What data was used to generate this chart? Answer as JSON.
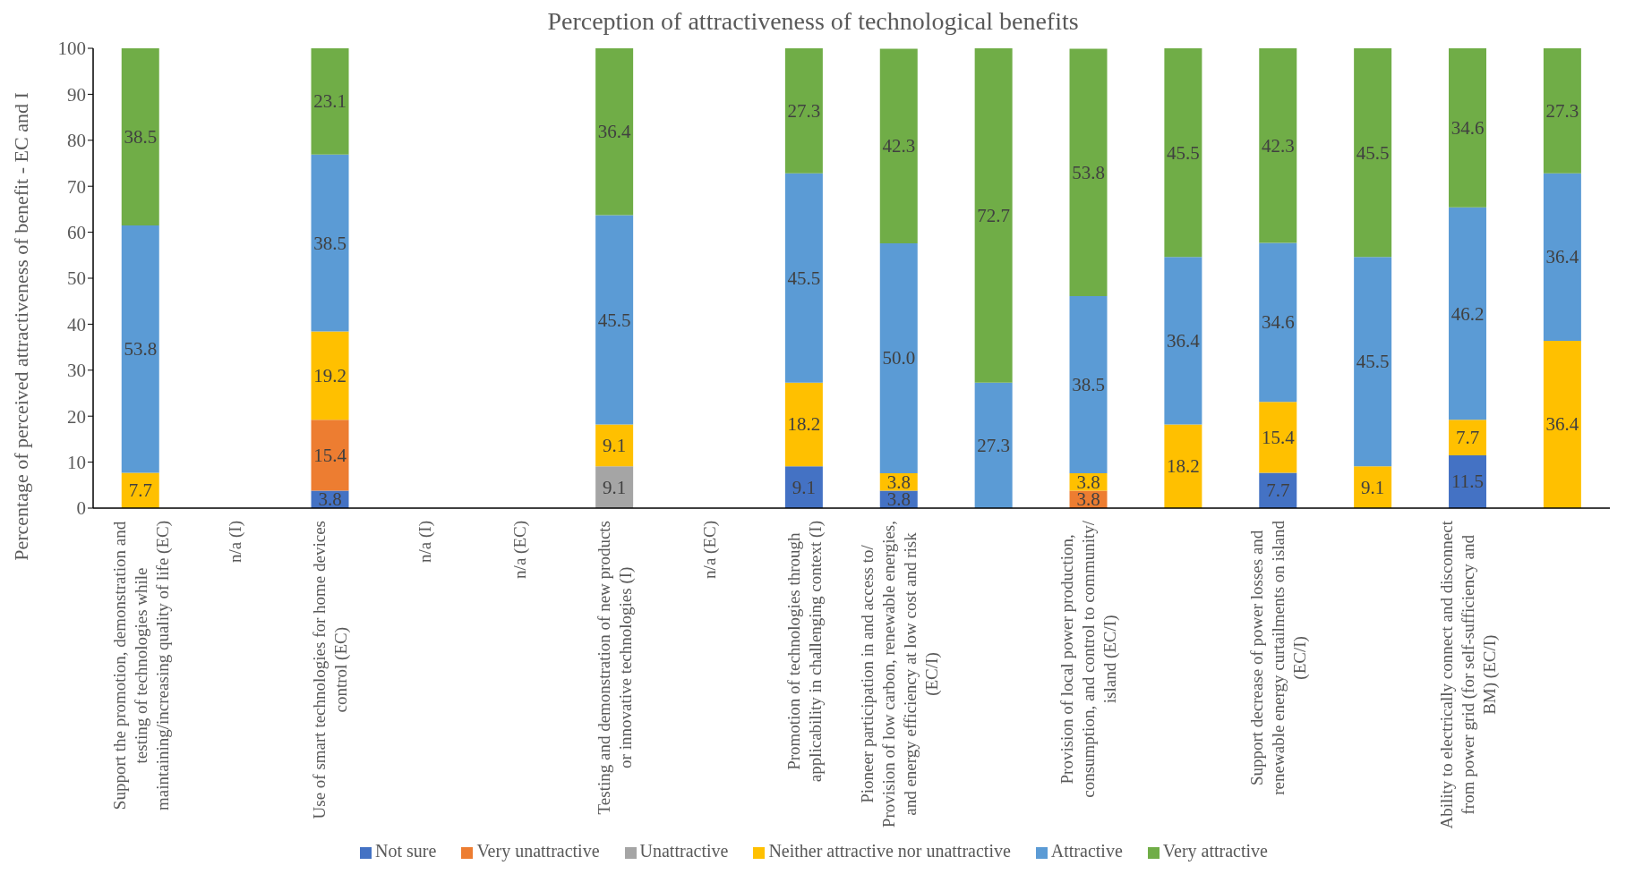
{
  "chart_data": {
    "type": "bar",
    "title": "Perception of attractiveness of technological benefits",
    "ylabel": "Percentage of perceived attractiveness of benefit - EC and I",
    "categories": [
      "Support the promotion, demonstration and testing of technologies while maintaining/increasing quality of life (EC)",
      "n/a (I)",
      "Use of smart technologies for home devices control (EC)",
      "n/a (I)",
      "n/a (EC)",
      "Testing and demonstration of new products or innovative technologies (I)",
      "n/a (EC)",
      "Promotion of technologies through applicability in challenging context (I)",
      "Pioneer participation in and access to/ Provision of low carbon, renewable energies, and energy efficiency at low cost and risk (EC/I)",
      null,
      "Provision of local power production, consumption, and control to community/ island (EC/I)",
      null,
      "Support decrease of power losses and renewable energy curtailments on island (EC/I)",
      null,
      "Ability to electrically connect and disconnect from power grid (for self-sufficiency and BM) (EC/I)",
      null
    ],
    "series": [
      {
        "name": "Not sure",
        "color": "#4472c4",
        "values": [
          null,
          null,
          3.8,
          null,
          null,
          null,
          null,
          9.1,
          3.8,
          null,
          null,
          null,
          7.7,
          null,
          11.5,
          null
        ],
        "value_labels": [
          null,
          null,
          "3.8",
          null,
          null,
          null,
          null,
          "9.1",
          "3.8",
          null,
          null,
          null,
          "7.7",
          null,
          "11.5",
          null
        ]
      },
      {
        "name": "Very unattractive",
        "color": "#ed7d31",
        "values": [
          null,
          null,
          15.4,
          null,
          null,
          null,
          null,
          null,
          null,
          null,
          3.8,
          null,
          null,
          null,
          null,
          null
        ],
        "value_labels": [
          null,
          null,
          "15.4",
          null,
          null,
          null,
          null,
          null,
          null,
          null,
          "3.8",
          null,
          null,
          null,
          null,
          null
        ]
      },
      {
        "name": "Unattractive",
        "color": "#a5a5a5",
        "values": [
          null,
          null,
          null,
          null,
          null,
          9.1,
          null,
          null,
          null,
          null,
          null,
          null,
          null,
          null,
          null,
          null
        ],
        "value_labels": [
          null,
          null,
          null,
          null,
          null,
          "9.1",
          null,
          null,
          null,
          null,
          null,
          null,
          null,
          null,
          null,
          null
        ]
      },
      {
        "name": "Neither attractive nor unattractive",
        "color": "#ffc000",
        "values": [
          7.7,
          null,
          19.2,
          null,
          null,
          9.1,
          null,
          18.2,
          3.8,
          null,
          3.8,
          18.2,
          15.4,
          9.1,
          7.7,
          36.4
        ],
        "value_labels": [
          "7.7",
          null,
          "19.2",
          null,
          null,
          "9.1",
          null,
          "18.2",
          "3.8",
          null,
          "3.8",
          "18.2",
          "15.4",
          "9.1",
          "7.7",
          "36.4"
        ]
      },
      {
        "name": "Attractive",
        "color": "#5b9bd5",
        "values": [
          53.8,
          null,
          38.5,
          null,
          null,
          45.5,
          null,
          45.5,
          50.0,
          27.3,
          38.5,
          36.4,
          34.6,
          45.5,
          46.2,
          36.4
        ],
        "value_labels": [
          "53.8",
          null,
          "38.5",
          null,
          null,
          "45.5",
          null,
          "45.5",
          "50.0",
          "27.3",
          "38.5",
          "36.4",
          "34.6",
          "45.5",
          "46.2",
          "36.4"
        ]
      },
      {
        "name": "Very attractive",
        "color": "#70ad47",
        "values": [
          38.5,
          null,
          23.1,
          null,
          null,
          36.4,
          null,
          27.3,
          42.3,
          72.7,
          53.8,
          45.5,
          42.3,
          45.5,
          34.6,
          27.3
        ],
        "value_labels": [
          "38.5",
          null,
          "23.1",
          null,
          null,
          "36.4",
          null,
          "27.3",
          "42.3",
          "72.7",
          "53.8",
          "45.5",
          "42.3",
          "45.5",
          "34.6",
          "27.3"
        ]
      }
    ],
    "stacked": true,
    "ylim": [
      0,
      100
    ],
    "yticks": [
      0,
      10,
      20,
      30,
      40,
      50,
      60,
      70,
      80,
      90,
      100
    ],
    "legend": "bottom"
  }
}
